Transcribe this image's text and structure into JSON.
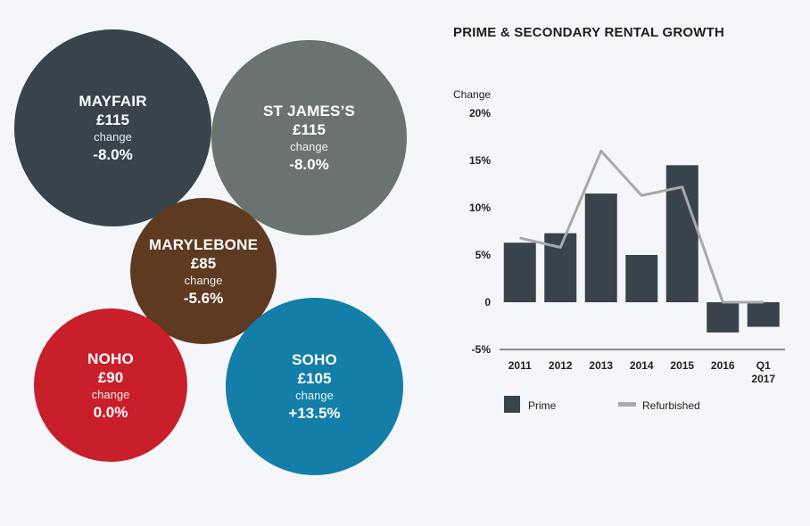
{
  "bubbles": [
    {
      "id": "mayfair",
      "name": "MAYFAIR",
      "price": "£115",
      "change_label": "change",
      "change": "-8.0%",
      "color": "#38434c"
    },
    {
      "id": "stjames",
      "name": "ST JAMES’S",
      "price": "£115",
      "change_label": "change",
      "change": "-8.0%",
      "color": "#6a7372"
    },
    {
      "id": "marylebone",
      "name": "MARYLEBONE",
      "price": "£85",
      "change_label": "change",
      "change": "-5.6%",
      "color": "#5e3a21"
    },
    {
      "id": "noho",
      "name": "NOHO",
      "price": "£90",
      "change_label": "change",
      "change": "0.0%",
      "color": "#c81f2b"
    },
    {
      "id": "soho",
      "name": "SOHO",
      "price": "£105",
      "change_label": "change",
      "change": "+13.5%",
      "color": "#137ea8"
    }
  ],
  "chart_data": {
    "type": "bar",
    "title": "PRIME & SECONDARY RENTAL GROWTH",
    "ylabel": "Change",
    "categories": [
      "2011",
      "2012",
      "2013",
      "2014",
      "2015",
      "2016",
      "Q1 2017"
    ],
    "ylim": [
      -5,
      20
    ],
    "yticks": [
      20,
      15,
      10,
      5,
      0,
      -5
    ],
    "ytick_labels": [
      "20%",
      "15%",
      "10%",
      "5%",
      "0",
      "-5%"
    ],
    "series": [
      {
        "name": "Prime",
        "type": "bar",
        "color": "#38434c",
        "values": [
          6.3,
          7.3,
          11.5,
          5.0,
          14.5,
          -3.2,
          -2.6
        ]
      },
      {
        "name": "Refurbished",
        "type": "line",
        "color": "#a7a9ac",
        "values": [
          6.8,
          5.8,
          16.0,
          11.3,
          12.2,
          0.0,
          0.0
        ]
      }
    ],
    "legend": "bottom",
    "grid": false
  }
}
